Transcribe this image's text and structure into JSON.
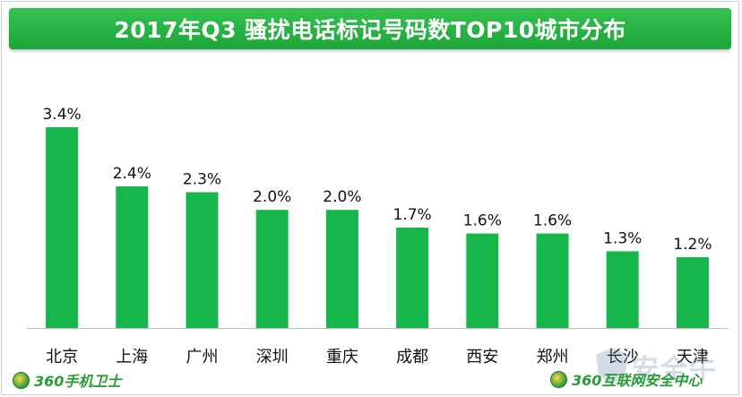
{
  "chart_data": {
    "type": "bar",
    "title": "2017年Q3  骚扰电话标记号码数TOP10城市分布",
    "categories": [
      "北京",
      "上海",
      "广州",
      "深圳",
      "重庆",
      "成都",
      "西安",
      "郑州",
      "长沙",
      "天津"
    ],
    "values": [
      3.4,
      2.4,
      2.3,
      2.0,
      2.0,
      1.7,
      1.6,
      1.6,
      1.3,
      1.2
    ],
    "value_labels": [
      "3.4%",
      "2.4%",
      "2.3%",
      "2.0%",
      "2.0%",
      "1.7%",
      "1.6%",
      "1.6%",
      "1.3%",
      "1.2%"
    ],
    "unit": "%",
    "ylim": [
      0,
      3.4
    ],
    "grid": false,
    "bar_color": "#17b64a"
  },
  "branding": {
    "left_logo": "360手机卫士",
    "right_logo": "360互联网安全中心",
    "watermark": "安全牛"
  },
  "colors": {
    "title_bar": "#22ac3e",
    "title_text": "#ffffff",
    "axis": "#bdbdbd"
  }
}
